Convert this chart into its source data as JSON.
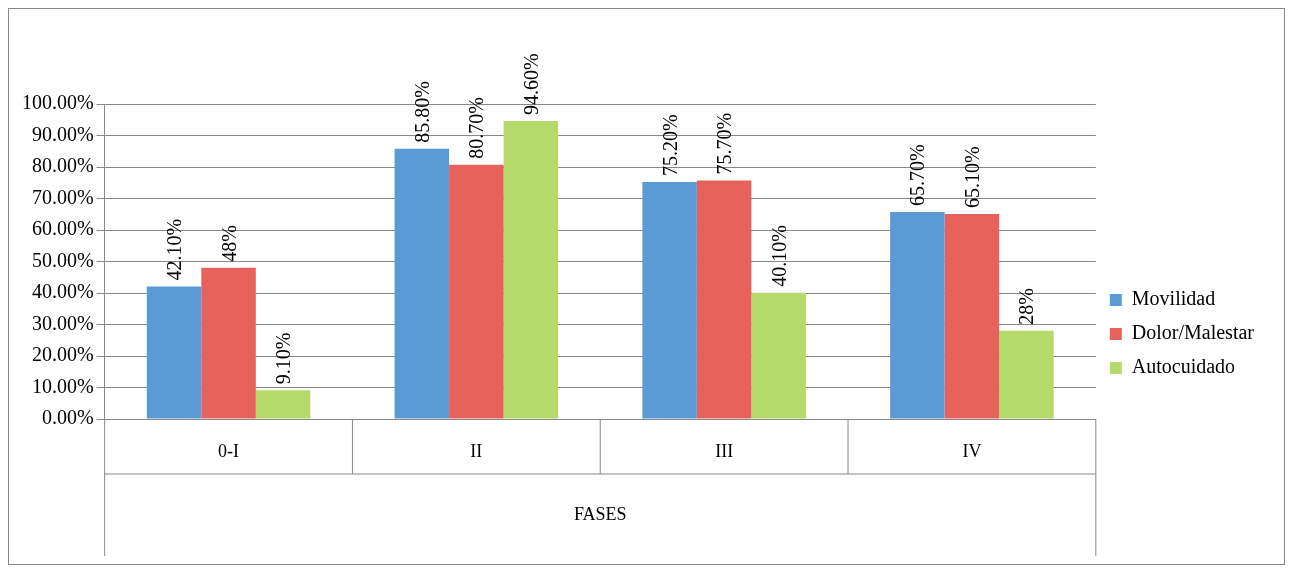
{
  "chart_data": {
    "type": "bar",
    "xlabel": "FASES",
    "categories": [
      "0-I",
      "II",
      "III",
      "IV"
    ],
    "series": [
      {
        "name": "Movilidad",
        "color": "#5b9bd5",
        "values": [
          42.1,
          85.8,
          75.2,
          65.7
        ],
        "value_labels": [
          "42.10%",
          "85.80%",
          "75.20%",
          "65.70%"
        ]
      },
      {
        "name": "Dolor/Malestar",
        "color": "#e8625c",
        "values": [
          48,
          80.7,
          75.7,
          65.1
        ],
        "value_labels": [
          "48%",
          "80.70%",
          "75.70%",
          "65.10%"
        ]
      },
      {
        "name": "Autocuidado",
        "color": "#b5d96a",
        "values": [
          9.1,
          94.6,
          40.1,
          28
        ],
        "value_labels": [
          "9.10%",
          "94.60%",
          "40.10%",
          "28%"
        ]
      }
    ],
    "ylim": [
      0,
      100
    ],
    "yticks": [
      {
        "value": 0,
        "label": "0.00%"
      },
      {
        "value": 10,
        "label": "10.00%"
      },
      {
        "value": 20,
        "label": "20.00%"
      },
      {
        "value": 30,
        "label": "30.00%"
      },
      {
        "value": 40,
        "label": "40.00%"
      },
      {
        "value": 50,
        "label": "50.00%"
      },
      {
        "value": 60,
        "label": "60.00%"
      },
      {
        "value": 70,
        "label": "70.00%"
      },
      {
        "value": 80,
        "label": "80.00%"
      },
      {
        "value": 90,
        "label": "90.00%"
      },
      {
        "value": 100,
        "label": "100.00%"
      }
    ],
    "grid": "y",
    "legend": "right"
  }
}
